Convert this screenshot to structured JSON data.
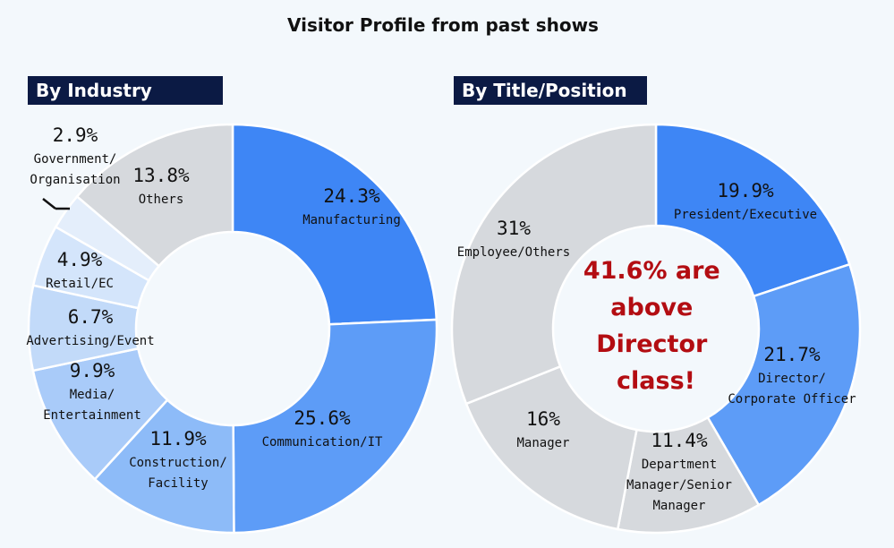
{
  "title": "Visitor Profile from past shows",
  "labels": {
    "industry": "By Industry",
    "title_position": "By Title/Position"
  },
  "center_note": [
    "41.6% are",
    "above",
    "Director",
    "class!"
  ],
  "chart_data": [
    {
      "type": "pie",
      "subtitle": "By Industry",
      "slices": [
        {
          "pct": "24.3%",
          "value": 24.3,
          "lines": [
            "Manufacturing"
          ],
          "color": "#3e86f5"
        },
        {
          "pct": "25.6%",
          "value": 25.6,
          "lines": [
            "Communication/IT"
          ],
          "color": "#5d9cf7"
        },
        {
          "pct": "11.9%",
          "value": 11.9,
          "lines": [
            "Construction/",
            "Facility"
          ],
          "color": "#8dbbf8"
        },
        {
          "pct": "9.9%",
          "value": 9.9,
          "lines": [
            "Media/",
            "Entertainment"
          ],
          "color": "#a9cbf9"
        },
        {
          "pct": "6.7%",
          "value": 6.7,
          "lines": [
            "Advertising/Event"
          ],
          "color": "#c2daf9"
        },
        {
          "pct": "4.9%",
          "value": 4.9,
          "lines": [
            "Retail/EC"
          ],
          "color": "#d4e5fb"
        },
        {
          "pct": "2.9%",
          "value": 2.9,
          "lines": [
            "Government/",
            "Organisation"
          ],
          "color": "#e4eefb"
        },
        {
          "pct": "13.8%",
          "value": 13.8,
          "lines": [
            "Others"
          ],
          "color": "#d6d9dd"
        }
      ]
    },
    {
      "type": "pie",
      "subtitle": "By Title/Position",
      "slices": [
        {
          "pct": "19.9%",
          "value": 19.9,
          "lines": [
            "President/Executive"
          ],
          "color": "#3e86f5"
        },
        {
          "pct": "21.7%",
          "value": 21.7,
          "lines": [
            "Director/",
            "Corporate Officer"
          ],
          "color": "#5d9cf7"
        },
        {
          "pct": "11.4%",
          "value": 11.4,
          "lines": [
            "Department",
            "Manager/Senior",
            "Manager"
          ],
          "color": "#d6d9dd"
        },
        {
          "pct": "16%",
          "value": 16,
          "lines": [
            "Manager"
          ],
          "color": "#d6d9dd"
        },
        {
          "pct": "31%",
          "value": 31,
          "lines": [
            "Employee/Others"
          ],
          "color": "#d6d9dd"
        }
      ]
    }
  ]
}
